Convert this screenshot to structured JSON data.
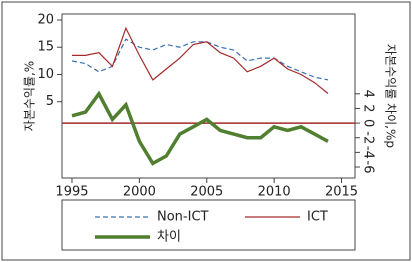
{
  "chart_data": {
    "type": "line",
    "ylabel": "자본수익률,%",
    "y2label": "자본수익률 차이,%p",
    "x": [
      1995,
      1996,
      1997,
      1998,
      1999,
      2000,
      2001,
      2002,
      2003,
      2004,
      2005,
      2006,
      2007,
      2008,
      2009,
      2010,
      2011,
      2012,
      2013,
      2014
    ],
    "series": [
      {
        "name": "Non-ICT",
        "color": "#3a6fb0",
        "dashed": true,
        "values": [
          12.5,
          12,
          10.5,
          11.5,
          16.5,
          15,
          14.5,
          15.5,
          15,
          16,
          16,
          15,
          14.5,
          12.5,
          13,
          13,
          11.5,
          10.5,
          9.5,
          9
        ]
      },
      {
        "name": "ICT",
        "color": "#a52a2a",
        "dashed": false,
        "values": [
          13.5,
          13.5,
          14,
          11.5,
          18.5,
          13.5,
          9,
          11,
          13,
          15.5,
          16,
          14,
          13,
          10.5,
          11.5,
          13,
          11,
          10,
          8.5,
          6.5
        ]
      },
      {
        "name": "차이",
        "color": "#4f7f2f",
        "axis": "y2",
        "dashed": false,
        "values": [
          1,
          1.5,
          4,
          0.5,
          2.5,
          -2.5,
          -5.5,
          -4.5,
          -1.5,
          -0.5,
          0.5,
          -1,
          -1.5,
          -2,
          -2,
          -0.5,
          -1,
          -0.5,
          -1.5,
          -2.5
        ]
      }
    ],
    "xlim": [
      1994.26,
      2016
    ],
    "xticks": [
      1995,
      2000,
      2005,
      2010,
      2015
    ],
    "ylim": [
      -9,
      21.1
    ],
    "yticks": [
      5,
      10,
      15,
      20
    ],
    "y2lim": [
      -7.5,
      14.9
    ],
    "y2ticks": [
      -6,
      -4,
      -2,
      0,
      2,
      4
    ],
    "hline": {
      "axis": "y2",
      "value": 0,
      "color": "#a52a2a"
    },
    "grid": false
  }
}
